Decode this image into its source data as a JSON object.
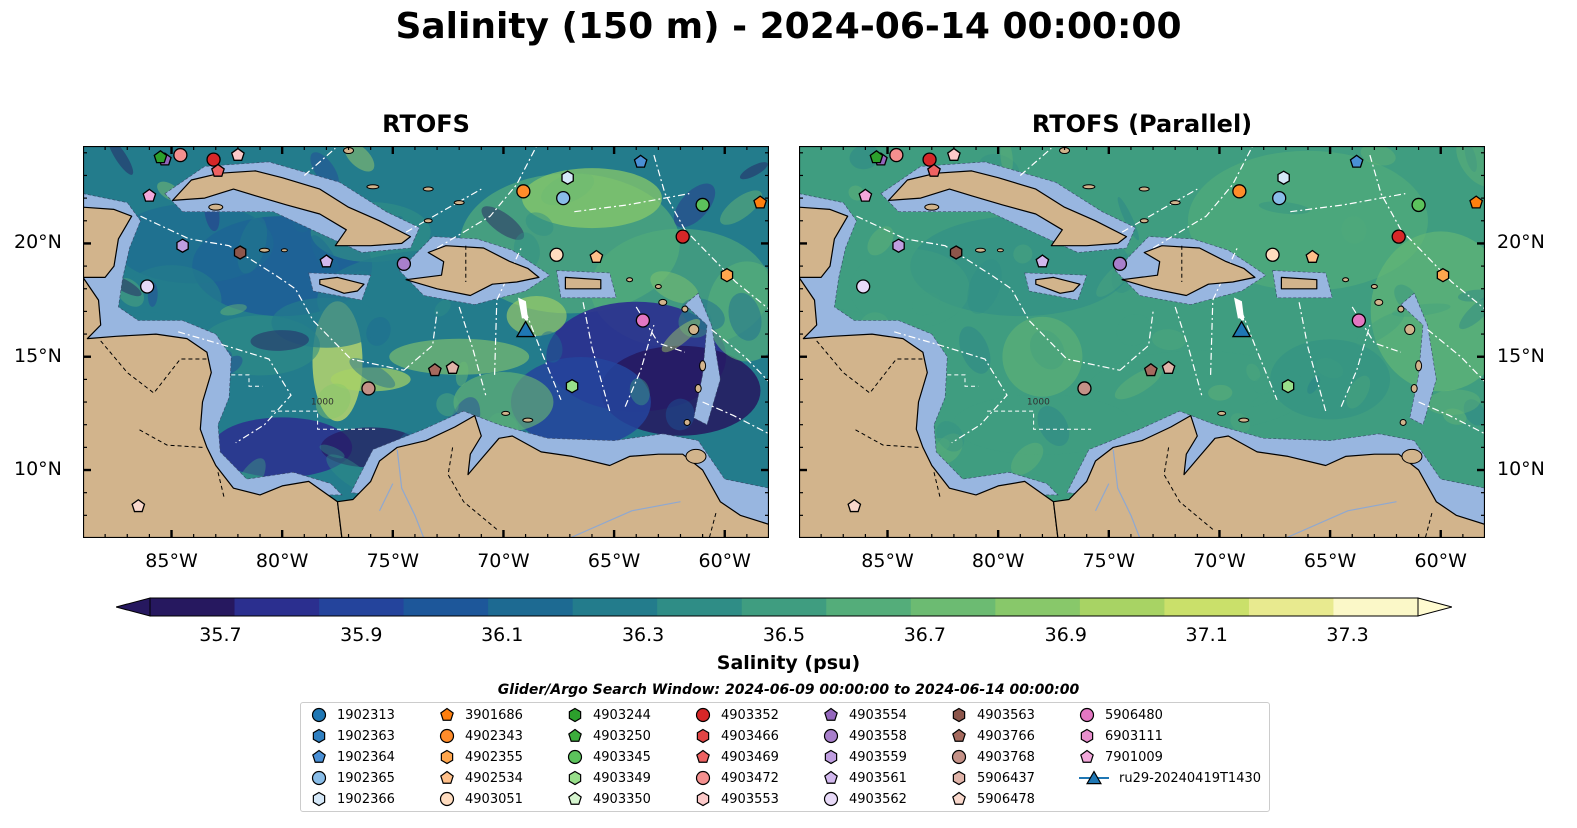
{
  "title": "Salinity (150 m) - 2024-06-14 00:00:00",
  "panels": [
    {
      "title": "RTOFS"
    },
    {
      "title": "RTOFS (Parallel)"
    }
  ],
  "lat_labels": [
    "20°N",
    "15°N",
    "10°N"
  ],
  "lon_labels": [
    "85°W",
    "80°W",
    "75°W",
    "70°W",
    "65°W",
    "60°W"
  ],
  "colorbar": {
    "label": "Salinity (psu)",
    "ticks": [
      "35.7",
      "35.9",
      "36.1",
      "36.3",
      "36.5",
      "36.7",
      "36.9",
      "37.1",
      "37.3"
    ],
    "colors": [
      "#26185f",
      "#2b2f8f",
      "#24449c",
      "#1d579a",
      "#1d6a92",
      "#237c8c",
      "#2f8d86",
      "#3f9d80",
      "#54ad7a",
      "#6cbb72",
      "#88c86a",
      "#a8d364",
      "#cae06a",
      "#e8ea8f",
      "#fbf8c8"
    ]
  },
  "contour_label": "1000",
  "search_window": "Glider/Argo Search Window: 2024-06-09 00:00:00 to 2024-06-14 00:00:00",
  "legend": [
    {
      "label": "1902313",
      "marker": "circle",
      "color": "#1f77b4"
    },
    {
      "label": "1902363",
      "marker": "hexagon",
      "color": "#2f7fc0"
    },
    {
      "label": "1902364",
      "marker": "pentagon",
      "color": "#4a90d6"
    },
    {
      "label": "1902365",
      "marker": "circle",
      "color": "#89bde8"
    },
    {
      "label": "1902366",
      "marker": "hexagon",
      "color": "#d5e8f8"
    },
    {
      "label": "3901686",
      "marker": "pentagon",
      "color": "#ff7f0e"
    },
    {
      "label": "4902343",
      "marker": "circle",
      "color": "#ff8c2a"
    },
    {
      "label": "4902355",
      "marker": "hexagon",
      "color": "#ffa64d"
    },
    {
      "label": "4902534",
      "marker": "pentagon",
      "color": "#ffc08a"
    },
    {
      "label": "4903051",
      "marker": "circle",
      "color": "#ffdcbf"
    },
    {
      "label": "4903244",
      "marker": "hexagon",
      "color": "#2ca02c"
    },
    {
      "label": "4903250",
      "marker": "pentagon",
      "color": "#3cad3c"
    },
    {
      "label": "4903345",
      "marker": "circle",
      "color": "#5cc25c"
    },
    {
      "label": "4903349",
      "marker": "hexagon",
      "color": "#98df8a"
    },
    {
      "label": "4903350",
      "marker": "pentagon",
      "color": "#d6f5cf"
    },
    {
      "label": "4903352",
      "marker": "circle",
      "color": "#d62728"
    },
    {
      "label": "4903466",
      "marker": "hexagon",
      "color": "#e04444"
    },
    {
      "label": "4903469",
      "marker": "pentagon",
      "color": "#ee6262"
    },
    {
      "label": "4903472",
      "marker": "circle",
      "color": "#f4908f"
    },
    {
      "label": "4903553",
      "marker": "hexagon",
      "color": "#fcc9c9"
    },
    {
      "label": "4903554",
      "marker": "pentagon",
      "color": "#9467bd"
    },
    {
      "label": "4903558",
      "marker": "circle",
      "color": "#a87fcb"
    },
    {
      "label": "4903559",
      "marker": "hexagon",
      "color": "#bf9ee0"
    },
    {
      "label": "4903561",
      "marker": "pentagon",
      "color": "#d2b8ee"
    },
    {
      "label": "4903562",
      "marker": "circle",
      "color": "#e8daf8"
    },
    {
      "label": "4903563",
      "marker": "hexagon",
      "color": "#8c564b"
    },
    {
      "label": "4903766",
      "marker": "pentagon",
      "color": "#a56a5e"
    },
    {
      "label": "4903768",
      "marker": "circle",
      "color": "#c49187"
    },
    {
      "label": "5906437",
      "marker": "hexagon",
      "color": "#e0b4a9"
    },
    {
      "label": "5906478",
      "marker": "pentagon",
      "color": "#f9d8cc"
    },
    {
      "label": "5906480",
      "marker": "circle",
      "color": "#e377c2"
    },
    {
      "label": "6903111",
      "marker": "hexagon",
      "color": "#e88fcd"
    },
    {
      "label": "7901009",
      "marker": "pentagon",
      "color": "#f3a8db"
    },
    {
      "label": "ru29-20240419T1430",
      "marker": "triangle-line",
      "color": "#1f77b4"
    }
  ],
  "markers": [
    {
      "lon": -85.3,
      "lat": 23.7,
      "shape": "pentagon",
      "color": "#9467bd"
    },
    {
      "lon": -85.5,
      "lat": 23.8,
      "shape": "pentagon",
      "color": "#2ca02c"
    },
    {
      "lon": -84.6,
      "lat": 23.9,
      "shape": "circle",
      "color": "#f4908f"
    },
    {
      "lon": -83.1,
      "lat": 23.7,
      "shape": "circle",
      "color": "#d62728"
    },
    {
      "lon": -82.0,
      "lat": 23.9,
      "shape": "pentagon",
      "color": "#fcc9c9"
    },
    {
      "lon": -82.9,
      "lat": 23.2,
      "shape": "pentagon",
      "color": "#ee6262"
    },
    {
      "lon": -86.0,
      "lat": 22.1,
      "shape": "pentagon",
      "color": "#f3a8db"
    },
    {
      "lon": -84.5,
      "lat": 19.9,
      "shape": "hexagon",
      "color": "#bf9ee0"
    },
    {
      "lon": -81.9,
      "lat": 19.6,
      "shape": "hexagon",
      "color": "#8c564b"
    },
    {
      "lon": -78.0,
      "lat": 19.2,
      "shape": "pentagon",
      "color": "#d2b8ee"
    },
    {
      "lon": -86.1,
      "lat": 18.1,
      "shape": "circle",
      "color": "#e8daf8"
    },
    {
      "lon": -74.5,
      "lat": 19.1,
      "shape": "circle",
      "color": "#a87fcb"
    },
    {
      "lon": -69.1,
      "lat": 22.3,
      "shape": "circle",
      "color": "#ff8c2a"
    },
    {
      "lon": -67.1,
      "lat": 22.9,
      "shape": "hexagon",
      "color": "#d5e8f8"
    },
    {
      "lon": -67.3,
      "lat": 22.0,
      "shape": "circle",
      "color": "#89bde8"
    },
    {
      "lon": -63.8,
      "lat": 23.6,
      "shape": "pentagon",
      "color": "#4a90d6"
    },
    {
      "lon": -61.9,
      "lat": 20.3,
      "shape": "circle",
      "color": "#d62728"
    },
    {
      "lon": -61.0,
      "lat": 21.7,
      "shape": "circle",
      "color": "#5cc25c"
    },
    {
      "lon": -59.9,
      "lat": 18.6,
      "shape": "hexagon",
      "color": "#ffa64d"
    },
    {
      "lon": -58.4,
      "lat": 21.8,
      "shape": "pentagon",
      "color": "#ff7f0e"
    },
    {
      "lon": -67.6,
      "lat": 19.5,
      "shape": "circle",
      "color": "#ffdcbf"
    },
    {
      "lon": -65.8,
      "lat": 19.4,
      "shape": "pentagon",
      "color": "#ffc08a"
    },
    {
      "lon": -63.7,
      "lat": 16.6,
      "shape": "circle",
      "color": "#e377c2"
    },
    {
      "lon": -73.1,
      "lat": 14.4,
      "shape": "pentagon",
      "color": "#a56a5e"
    },
    {
      "lon": -72.3,
      "lat": 14.5,
      "shape": "pentagon",
      "color": "#e0b4a9"
    },
    {
      "lon": -76.1,
      "lat": 13.6,
      "shape": "circle",
      "color": "#c49187"
    },
    {
      "lon": -66.9,
      "lat": 13.7,
      "shape": "hexagon",
      "color": "#98df8a"
    },
    {
      "lon": -86.5,
      "lat": 8.4,
      "shape": "pentagon",
      "color": "#f9d8cc"
    },
    {
      "lon": -69.0,
      "lat": 16.2,
      "shape": "triangle",
      "color": "#1f77b4"
    }
  ]
}
